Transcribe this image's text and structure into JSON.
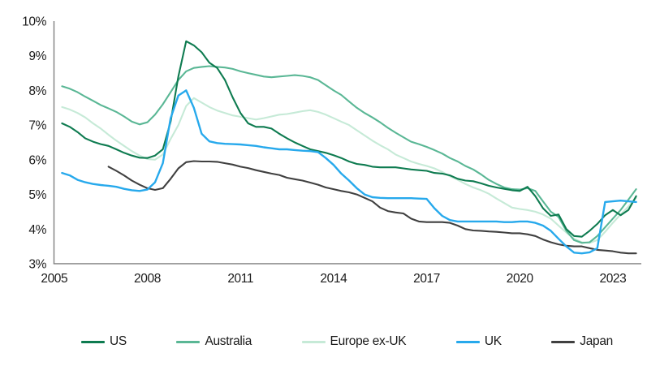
{
  "chart": {
    "y_axis": {
      "labels": [
        "10%",
        "9%",
        "8%",
        "7%",
        "6%",
        "5%",
        "4%",
        "3%"
      ],
      "values": [
        10,
        9,
        8,
        7,
        6,
        5,
        4,
        3
      ]
    },
    "x_axis": {
      "labels": [
        "2005",
        "2008",
        "2011",
        "2014",
        "2017",
        "2020",
        "2023"
      ],
      "values": [
        2005,
        2008,
        2011,
        2014,
        2017,
        2020,
        2023
      ]
    }
  },
  "colors": {
    "axis": "#7f7f7f",
    "text": "#1a1a1a",
    "background": "#ffffff"
  },
  "chart_data": {
    "type": "line",
    "unit": "%",
    "ylim": [
      3,
      10
    ],
    "xlim": [
      2005,
      2024
    ],
    "grid": false,
    "legend_position": "bottom",
    "x_encoding": "each series: start year, quarterly step 0.25, values in percent",
    "series": [
      {
        "name": "US",
        "color": "#0e7b50",
        "start": 2005.25,
        "step": 0.25,
        "values": [
          7.05,
          6.95,
          6.8,
          6.62,
          6.52,
          6.45,
          6.4,
          6.3,
          6.2,
          6.12,
          6.06,
          6.05,
          6.12,
          6.3,
          7.1,
          8.4,
          9.42,
          9.3,
          9.1,
          8.8,
          8.65,
          8.3,
          7.8,
          7.35,
          7.05,
          6.95,
          6.95,
          6.9,
          6.75,
          6.62,
          6.5,
          6.4,
          6.3,
          6.25,
          6.2,
          6.13,
          6.05,
          5.95,
          5.88,
          5.85,
          5.8,
          5.78,
          5.78,
          5.78,
          5.75,
          5.72,
          5.7,
          5.68,
          5.62,
          5.6,
          5.55,
          5.45,
          5.4,
          5.38,
          5.32,
          5.25,
          5.2,
          5.16,
          5.12,
          5.1,
          5.22,
          4.95,
          4.6,
          4.38,
          4.42,
          4.0,
          3.8,
          3.78,
          3.95,
          4.15,
          4.4,
          4.55,
          4.4,
          4.55,
          4.95
        ]
      },
      {
        "name": "Australia",
        "color": "#5ab795",
        "start": 2005.25,
        "step": 0.25,
        "values": [
          8.12,
          8.05,
          7.95,
          7.82,
          7.7,
          7.58,
          7.48,
          7.38,
          7.25,
          7.1,
          7.02,
          7.08,
          7.3,
          7.6,
          7.95,
          8.3,
          8.55,
          8.65,
          8.68,
          8.7,
          8.68,
          8.66,
          8.62,
          8.55,
          8.5,
          8.45,
          8.4,
          8.38,
          8.4,
          8.42,
          8.44,
          8.42,
          8.38,
          8.3,
          8.15,
          8.0,
          7.87,
          7.68,
          7.5,
          7.35,
          7.22,
          7.08,
          6.92,
          6.78,
          6.65,
          6.52,
          6.45,
          6.37,
          6.28,
          6.18,
          6.05,
          5.95,
          5.82,
          5.72,
          5.58,
          5.42,
          5.3,
          5.2,
          5.15,
          5.14,
          5.18,
          5.1,
          4.8,
          4.5,
          4.35,
          3.95,
          3.68,
          3.6,
          3.62,
          3.8,
          4.05,
          4.3,
          4.55,
          4.85,
          5.15
        ]
      },
      {
        "name": "Europe ex-UK",
        "color": "#c6ead7",
        "start": 2005.25,
        "step": 0.25,
        "values": [
          7.52,
          7.45,
          7.35,
          7.22,
          7.05,
          6.9,
          6.72,
          6.55,
          6.4,
          6.25,
          6.12,
          6.02,
          6.0,
          6.15,
          6.6,
          7.0,
          7.55,
          7.78,
          7.65,
          7.52,
          7.42,
          7.35,
          7.28,
          7.24,
          7.2,
          7.16,
          7.2,
          7.25,
          7.3,
          7.32,
          7.36,
          7.4,
          7.43,
          7.38,
          7.3,
          7.2,
          7.1,
          7.0,
          6.85,
          6.7,
          6.55,
          6.42,
          6.3,
          6.15,
          6.05,
          5.95,
          5.88,
          5.82,
          5.75,
          5.65,
          5.52,
          5.42,
          5.3,
          5.2,
          5.12,
          5.02,
          4.88,
          4.75,
          4.62,
          4.58,
          4.55,
          4.5,
          4.42,
          4.3,
          4.1,
          3.9,
          3.72,
          3.62,
          3.6,
          3.68,
          3.92,
          4.18,
          4.42,
          4.65,
          4.9
        ]
      },
      {
        "name": "UK",
        "color": "#27a9ec",
        "start": 2005.25,
        "step": 0.25,
        "values": [
          5.62,
          5.55,
          5.42,
          5.35,
          5.3,
          5.27,
          5.25,
          5.22,
          5.16,
          5.12,
          5.1,
          5.14,
          5.35,
          5.9,
          7.2,
          7.85,
          8.0,
          7.5,
          6.75,
          6.53,
          6.48,
          6.46,
          6.45,
          6.44,
          6.42,
          6.4,
          6.36,
          6.33,
          6.3,
          6.3,
          6.28,
          6.26,
          6.25,
          6.22,
          6.05,
          5.85,
          5.6,
          5.4,
          5.18,
          5.0,
          4.92,
          4.9,
          4.89,
          4.89,
          4.89,
          4.89,
          4.88,
          4.87,
          4.6,
          4.38,
          4.26,
          4.22,
          4.22,
          4.22,
          4.22,
          4.22,
          4.22,
          4.2,
          4.2,
          4.22,
          4.22,
          4.18,
          4.1,
          3.95,
          3.72,
          3.5,
          3.32,
          3.3,
          3.33,
          3.45,
          4.78,
          4.8,
          4.82,
          4.8,
          4.78
        ]
      },
      {
        "name": "Japan",
        "color": "#404040",
        "start": 2006.75,
        "step": 0.25,
        "values": [
          5.8,
          5.68,
          5.55,
          5.4,
          5.28,
          5.18,
          5.13,
          5.18,
          5.45,
          5.75,
          5.93,
          5.96,
          5.95,
          5.95,
          5.94,
          5.9,
          5.86,
          5.8,
          5.76,
          5.7,
          5.65,
          5.6,
          5.56,
          5.48,
          5.44,
          5.4,
          5.34,
          5.28,
          5.2,
          5.15,
          5.1,
          5.06,
          5.0,
          4.9,
          4.8,
          4.62,
          4.52,
          4.48,
          4.45,
          4.3,
          4.22,
          4.2,
          4.2,
          4.2,
          4.18,
          4.1,
          4.0,
          3.96,
          3.95,
          3.93,
          3.92,
          3.9,
          3.88,
          3.88,
          3.85,
          3.8,
          3.7,
          3.62,
          3.56,
          3.52,
          3.5,
          3.5,
          3.45,
          3.4,
          3.38,
          3.36,
          3.32,
          3.3,
          3.3
        ]
      }
    ]
  }
}
